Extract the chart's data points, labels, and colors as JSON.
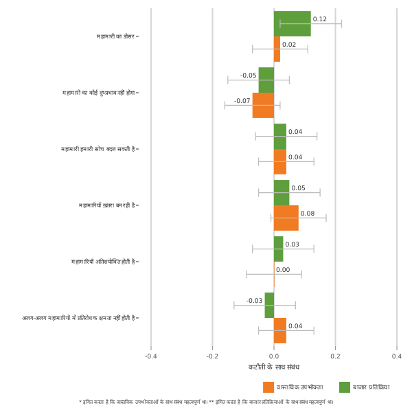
{
  "chart_data": {
    "type": "bar",
    "orientation": "horizontal",
    "categories": [
      "महामारी का डोसर",
      "महामारी का कोई दुष्प्रभाव नहीं होगा",
      "महामारी हमारी सोच बदल सकती है",
      "महामारियाँ ख़तरा बन रही है",
      "महामारियाँ अतिशयोक्ति होती है",
      "अलग-अलग महामारियों में प्रतिरोधक क्षमता नहीं होती है"
    ],
    "series": [
      {
        "name": "बाजार प्रतिक्रिया",
        "color": "#5e9e3c",
        "values": [
          0.12,
          -0.05,
          0.04,
          0.05,
          0.03,
          -0.03
        ],
        "errors": [
          0.1,
          0.1,
          0.1,
          0.1,
          0.1,
          0.1
        ],
        "value_labels": [
          "0.12",
          "-0.05",
          "0.04",
          "0.05",
          "0.03",
          "-0.03"
        ]
      },
      {
        "name": "वास्तविक उपभोक्ता",
        "color": "#f07b22",
        "values": [
          0.02,
          -0.07,
          0.04,
          0.08,
          0.0,
          0.04
        ],
        "errors": [
          0.09,
          0.09,
          0.09,
          0.09,
          0.09,
          0.09
        ],
        "value_labels": [
          "0.02",
          "-0.07",
          "0.04",
          "0.08",
          "0.00",
          "0.04"
        ]
      }
    ],
    "xlim": [
      -0.4,
      0.4
    ],
    "xticks": [
      {
        "value": -0.4,
        "label": "-0.4"
      },
      {
        "value": -0.2,
        "label": "-0.2"
      },
      {
        "value": 0,
        "label": "0.0"
      },
      {
        "value": 0.2,
        "label": "0.2"
      },
      {
        "value": 0.4,
        "label": "0.4"
      }
    ],
    "xlabel": "कटौती के साथ संबंध",
    "grid": "x",
    "legend": "bottom",
    "annotations": [
      "* इंगित करता है कि वास्तविक उपभोक्ताओं के साथ संबंध महत्वपूर्ण था। ** इंगित करता है कि बाजार प्रतिक्रियाओं के साथ संबंध महत्वपूर्ण था।"
    ]
  }
}
